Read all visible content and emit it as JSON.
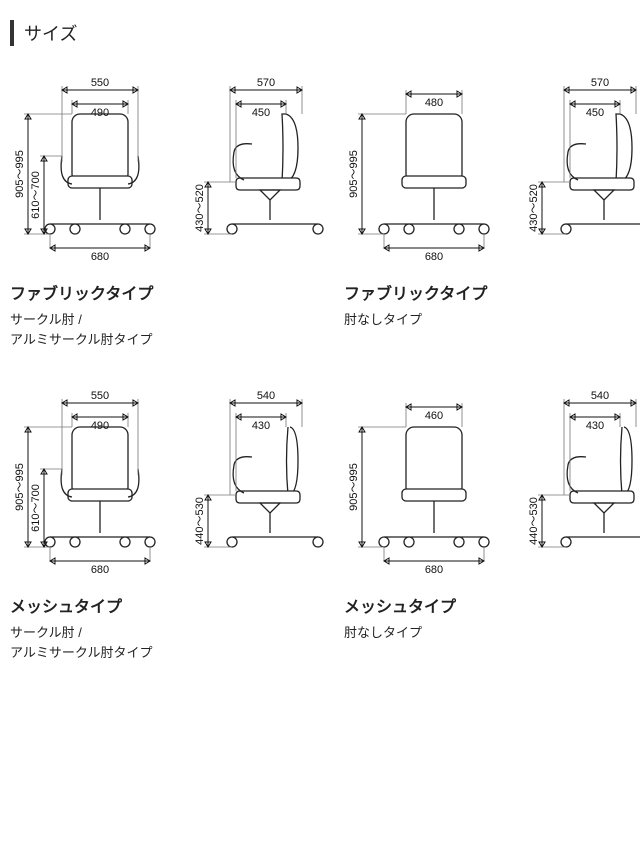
{
  "section_title": "サイズ",
  "variants": [
    {
      "type_title": "ファブリックタイプ",
      "subtype": "サークル肘 /\nアルミサークル肘タイプ",
      "has_armrest_front": true,
      "mesh_back": false,
      "front": {
        "top_outer": "550",
        "top_inner": "490",
        "height_outer": "905～995",
        "height_inner": "610～700",
        "base": "680"
      },
      "side": {
        "top_outer": "570",
        "top_inner": "450",
        "seat_h": "430～520"
      }
    },
    {
      "type_title": "ファブリックタイプ",
      "subtype": "肘なしタイプ",
      "has_armrest_front": false,
      "mesh_back": false,
      "front": {
        "top_outer": null,
        "top_inner": "480",
        "height_outer": "905～995",
        "height_inner": null,
        "base": "680"
      },
      "side": {
        "top_outer": "570",
        "top_inner": "450",
        "seat_h": "430～520"
      }
    },
    {
      "type_title": "メッシュタイプ",
      "subtype": "サークル肘 /\nアルミサークル肘タイプ",
      "has_armrest_front": true,
      "mesh_back": true,
      "front": {
        "top_outer": "550",
        "top_inner": "490",
        "height_outer": "905～995",
        "height_inner": "610～700",
        "base": "680"
      },
      "side": {
        "top_outer": "540",
        "top_inner": "430",
        "seat_h": "440～530"
      }
    },
    {
      "type_title": "メッシュタイプ",
      "subtype": "肘なしタイプ",
      "has_armrest_front": false,
      "mesh_back": true,
      "front": {
        "top_outer": null,
        "top_inner": "460",
        "height_outer": "905～995",
        "height_inner": null,
        "base": "680"
      },
      "side": {
        "top_outer": "540",
        "top_inner": "430",
        "seat_h": "440～530"
      }
    }
  ],
  "style": {
    "stroke": "#222222",
    "dim_stroke": "#111111",
    "background": "#ffffff",
    "font_size_dim": 11,
    "font_size_title": 16,
    "font_size_sub": 13
  }
}
